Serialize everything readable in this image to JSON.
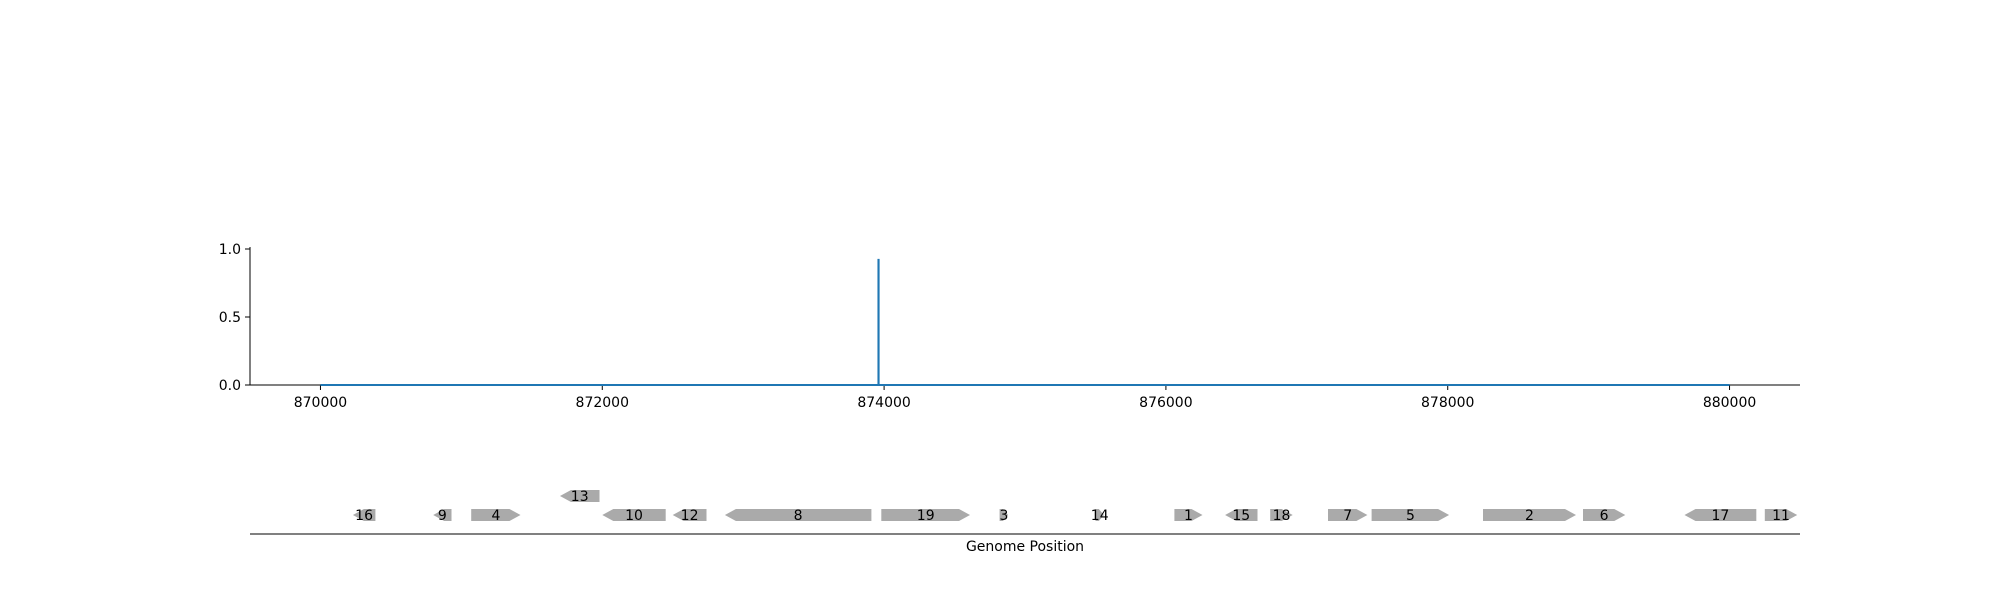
{
  "chart_data": [
    {
      "type": "line",
      "title": "",
      "xlabel": "",
      "ylabel": "",
      "xlim": [
        869500,
        880500
      ],
      "ylim": [
        0,
        1.0
      ],
      "x_ticks": [
        870000,
        872000,
        874000,
        876000,
        878000,
        880000
      ],
      "x_tick_labels": [
        "870000",
        "872000",
        "874000",
        "876000",
        "878000",
        "880000"
      ],
      "y_ticks": [
        0.0,
        0.5,
        1.0
      ],
      "y_tick_labels": [
        "0.0",
        "0.5",
        "1.0"
      ],
      "grid": false,
      "legend": "none",
      "color": "#1f77b4",
      "series": [
        {
          "x": [
            870000,
            873960,
            873960,
            873961,
            873961,
            880000
          ],
          "y": [
            0.0,
            0.0,
            0.92,
            0.92,
            0.0,
            0.0
          ]
        }
      ]
    },
    {
      "type": "gene_track",
      "xlabel": "Genome Position",
      "xlim": [
        869500,
        880500
      ],
      "color": "#aaaaaa",
      "genes": [
        {
          "label": "16",
          "start": 870230,
          "end": 870390,
          "strand": -1,
          "row": 0
        },
        {
          "label": "9",
          "start": 870800,
          "end": 870930,
          "strand": -1,
          "row": 0
        },
        {
          "label": "4",
          "start": 871070,
          "end": 871420,
          "strand": 1,
          "row": 0
        },
        {
          "label": "13",
          "start": 871700,
          "end": 871980,
          "strand": -1,
          "row": 1
        },
        {
          "label": "10",
          "start": 872000,
          "end": 872450,
          "strand": -1,
          "row": 0
        },
        {
          "label": "12",
          "start": 872500,
          "end": 872740,
          "strand": -1,
          "row": 0
        },
        {
          "label": "8",
          "start": 872870,
          "end": 873910,
          "strand": -1,
          "row": 0
        },
        {
          "label": "19",
          "start": 873980,
          "end": 874610,
          "strand": 1,
          "row": 0
        },
        {
          "label": "3",
          "start": 874820,
          "end": 874880,
          "strand": 1,
          "row": 0
        },
        {
          "label": "14",
          "start": 875500,
          "end": 875560,
          "strand": 1,
          "row": 0
        },
        {
          "label": "1",
          "start": 876060,
          "end": 876260,
          "strand": 1,
          "row": 0
        },
        {
          "label": "15",
          "start": 876420,
          "end": 876650,
          "strand": -1,
          "row": 0
        },
        {
          "label": "18",
          "start": 876740,
          "end": 876900,
          "strand": 1,
          "row": 0
        },
        {
          "label": "7",
          "start": 877150,
          "end": 877430,
          "strand": 1,
          "row": 0
        },
        {
          "label": "5",
          "start": 877460,
          "end": 878010,
          "strand": 1,
          "row": 0
        },
        {
          "label": "2",
          "start": 878250,
          "end": 878910,
          "strand": 1,
          "row": 0
        },
        {
          "label": "6",
          "start": 878960,
          "end": 879260,
          "strand": 1,
          "row": 0
        },
        {
          "label": "17",
          "start": 879680,
          "end": 880190,
          "strand": -1,
          "row": 0
        },
        {
          "label": "11",
          "start": 880250,
          "end": 880480,
          "strand": 1,
          "row": 0
        }
      ]
    }
  ]
}
